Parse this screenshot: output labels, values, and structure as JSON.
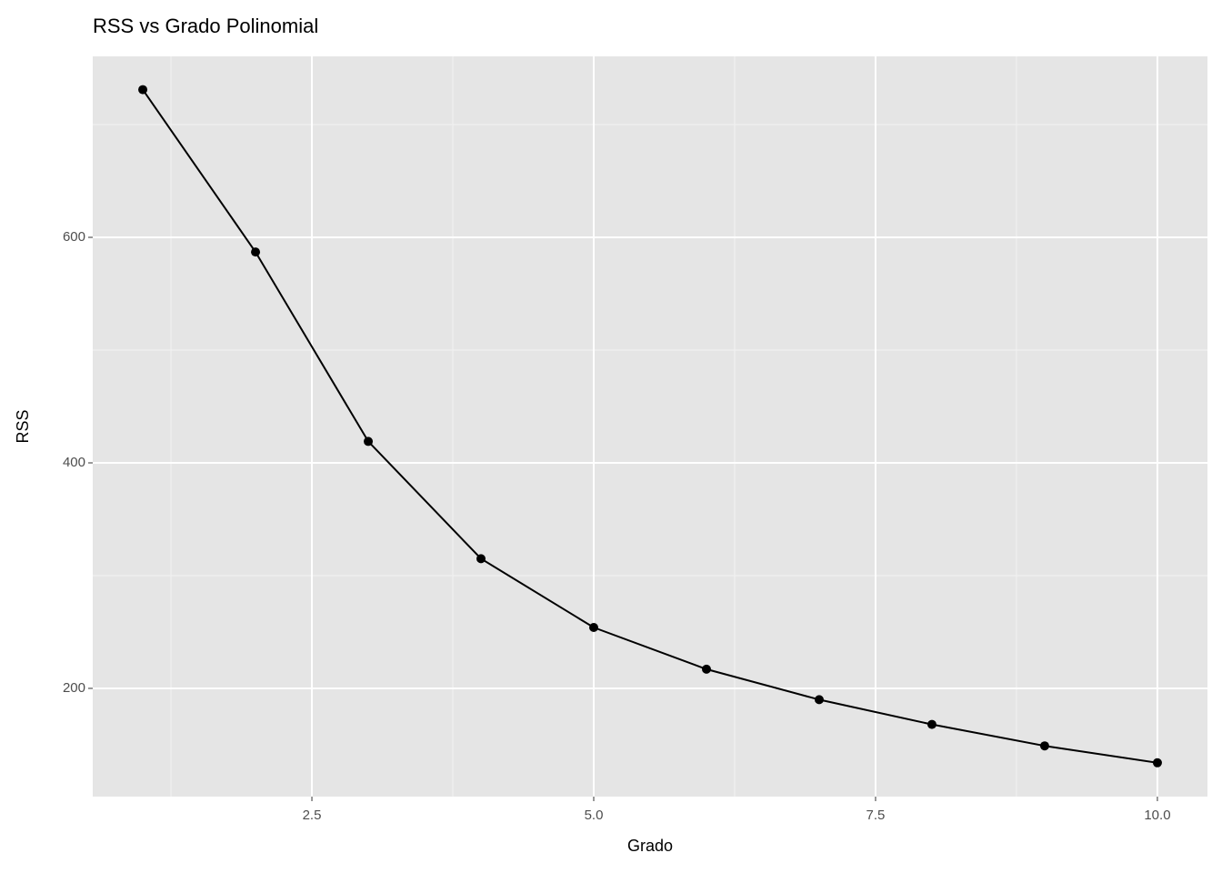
{
  "chart_data": {
    "type": "line",
    "title": "RSS vs Grado Polinomial",
    "x_label": "Grado",
    "y_label": "RSS",
    "x": [
      1,
      2,
      3,
      4,
      5,
      6,
      7,
      8,
      9,
      10
    ],
    "series": [
      {
        "color": "#000000",
        "values": [
          731,
          587,
          419,
          315,
          254,
          217,
          190,
          168,
          149,
          134
        ]
      }
    ],
    "xlim": [
      0.556,
      10.444
    ],
    "ylim": [
      104,
      760.5
    ],
    "xticks": [
      2.5,
      {
        "value": 5,
        "label": "5.0"
      },
      7.5,
      {
        "value": 10,
        "label": "10.0"
      }
    ],
    "yticks": [
      200,
      400,
      600
    ],
    "xminor": [
      1.25,
      3.75,
      6.25,
      8.75
    ],
    "yminor": [
      300,
      500,
      700
    ],
    "grid": true,
    "markers": true
  }
}
